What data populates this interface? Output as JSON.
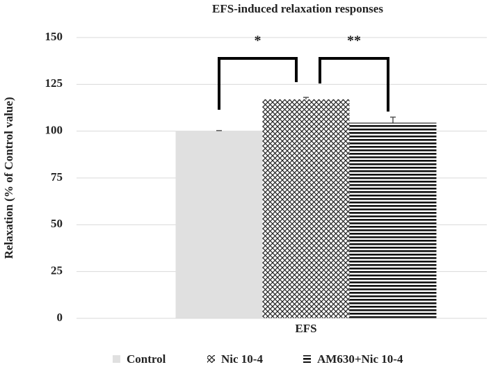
{
  "chart_data": {
    "type": "bar",
    "title": "EFS-induced relaxation responses",
    "y_label": "Relaxation (% of Control value)",
    "categories": [
      "EFS"
    ],
    "series": [
      {
        "name": "Control",
        "color": "#e0e0e0",
        "hatch": "none",
        "values": [
          100
        ],
        "errors": [
          0.3
        ]
      },
      {
        "name": "Nic 10-4",
        "color": "#222222",
        "hatch": "cross",
        "values": [
          117
        ],
        "errors": [
          1
        ]
      },
      {
        "name": "AM630+Nic 10-4",
        "color": "#111111",
        "hatch": "horizontal",
        "values": [
          104.5
        ],
        "errors": [
          3
        ]
      }
    ],
    "annotations": [
      {
        "text": "*",
        "between": [
          0,
          1
        ]
      },
      {
        "text": "**",
        "between": [
          1,
          2
        ]
      }
    ],
    "ylim": [
      0,
      150
    ],
    "yticks": [
      0,
      25,
      50,
      75,
      100,
      125,
      150
    ],
    "grid": true,
    "legend": "bottom"
  }
}
